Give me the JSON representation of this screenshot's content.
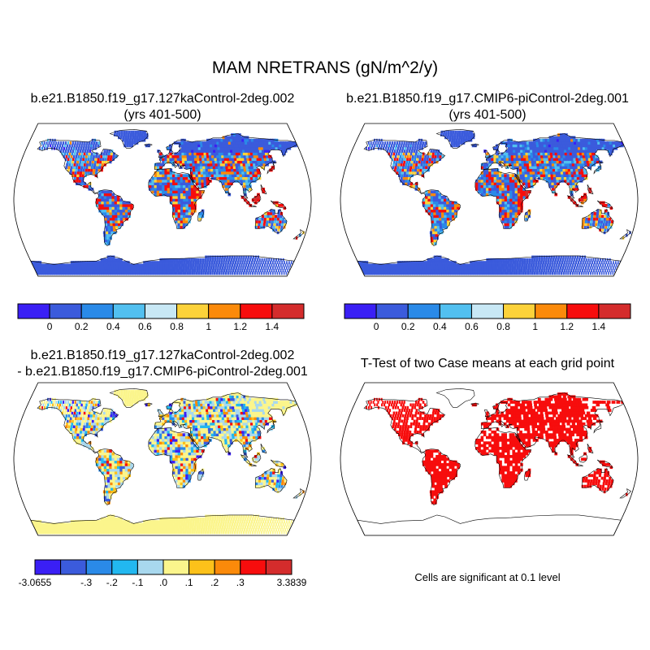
{
  "title": "MAM NRETRANS (gN/m^2/y)",
  "panels": [
    {
      "id": "case1",
      "title_line1": "b.e21.B1850.f19_g17.127kaControl-2deg.002",
      "title_line2": "(yrs 401-500)",
      "fill_regime": "abs"
    },
    {
      "id": "case2",
      "title_line1": "b.e21.B1850.f19_g17.CMIP6-piControl-2deg.001",
      "title_line2": "(yrs 401-500)",
      "fill_regime": "abs"
    },
    {
      "id": "diff",
      "title_line1": "b.e21.B1850.f19_g17.127kaControl-2deg.002",
      "title_line2": "- b.e21.B1850.f19_g17.CMIP6-piControl-2deg.001",
      "fill_regime": "diff"
    },
    {
      "id": "ttest",
      "title_line1": "T-Test of two Case means at each grid point",
      "title_line2": "",
      "fill_regime": "sig",
      "note": "Cells are significant at 0.1 level"
    }
  ],
  "colorbar_abs": {
    "colors": [
      "#3a1ff5",
      "#3b5bdc",
      "#2a8ae8",
      "#52c0f0",
      "#c8e8f5",
      "#fcd23a",
      "#fb8a0a",
      "#f70d0d",
      "#d42c2c"
    ],
    "ticks": [
      "0",
      "0.2",
      "0.4",
      "0.6",
      "0.8",
      "1",
      "1.2",
      "1.4"
    ]
  },
  "colorbar_diff": {
    "colors": [
      "#3a1ff5",
      "#3b5bdc",
      "#2a8ae8",
      "#22b8f0",
      "#a8d8ee",
      "#fbf58c",
      "#fcc11a",
      "#fb8a0a",
      "#f70d0d",
      "#d42c2c"
    ],
    "ticks": [
      "-3.0655",
      "-.3",
      "-.2",
      "-.1",
      ".0",
      ".1",
      ".2",
      ".3",
      "3.3839"
    ]
  },
  "colors": {
    "ocean": "#ffffff",
    "coast": "#000000",
    "sig": "#f70d0d"
  }
}
